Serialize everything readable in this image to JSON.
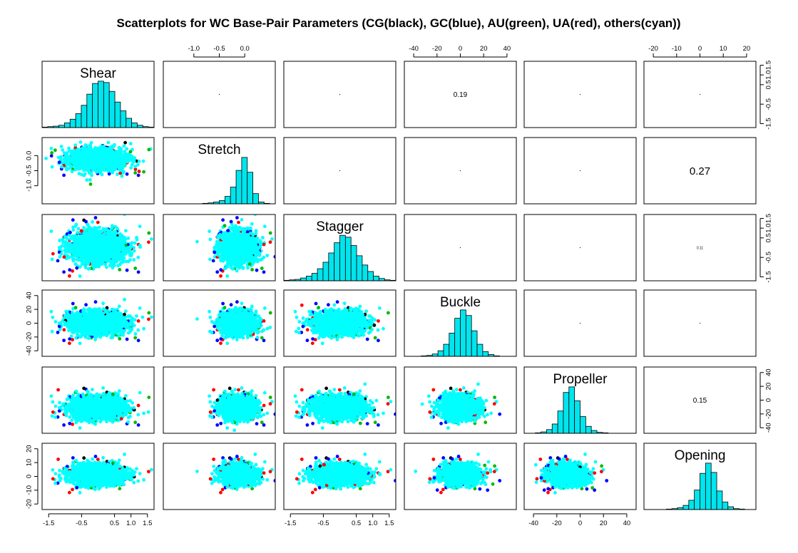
{
  "chart_data": {
    "type": "scatter-matrix",
    "title": "Scatterplots for WC Base-Pair Parameters (CG(black), GC(blue), AU(green), UA(red), others(cyan))",
    "variables": [
      {
        "name": "Shear",
        "range": [
          -1.7,
          1.7
        ],
        "ticks": [
          -1.5,
          -0.5,
          0.5,
          1.0,
          1.5
        ],
        "tick_labels": [
          "-1.5",
          "-0.5",
          "0.5",
          "1.0",
          "1.5"
        ]
      },
      {
        "name": "Stretch",
        "range": [
          -1.6,
          0.6
        ],
        "ticks": [
          -1.0,
          -0.5,
          0.0
        ],
        "tick_labels": [
          "-1.0",
          "-0.5",
          "0.0"
        ]
      },
      {
        "name": "Stagger",
        "range": [
          -1.7,
          1.7
        ],
        "ticks": [
          -1.5,
          -0.5,
          0.5,
          1.0,
          1.5
        ],
        "tick_labels": [
          "-1.5",
          "-0.5",
          "0.5",
          "1.0",
          "1.5"
        ]
      },
      {
        "name": "Buckle",
        "range": [
          -48,
          48
        ],
        "ticks": [
          -40,
          -20,
          0,
          20,
          40
        ],
        "tick_labels": [
          "-40",
          "-20",
          "0",
          "20",
          "40"
        ]
      },
      {
        "name": "Propeller",
        "range": [
          -48,
          48
        ],
        "ticks": [
          -40,
          -20,
          0,
          20,
          40
        ],
        "tick_labels": [
          "-40",
          "-20",
          "0",
          "20",
          "40"
        ]
      },
      {
        "name": "Opening",
        "range": [
          -24,
          24
        ],
        "ticks": [
          -20,
          -10,
          0,
          10,
          20
        ],
        "tick_labels": [
          "-20",
          "-10",
          "0",
          "10",
          "20"
        ]
      }
    ],
    "tick_side": {
      "bottom": [
        0,
        2,
        4
      ],
      "top": [
        1,
        3,
        5
      ],
      "left": [
        1,
        3,
        5
      ],
      "right": [
        0,
        2,
        4
      ]
    },
    "correlations": [
      {
        "row": 0,
        "col": 3,
        "label": "0.19",
        "size": 10
      },
      {
        "row": 1,
        "col": 5,
        "label": "0.27",
        "size": 15
      },
      {
        "row": 2,
        "col": 5,
        "label": "0.11",
        "size": 5
      },
      {
        "row": 4,
        "col": 5,
        "label": "0.15",
        "size": 10
      }
    ],
    "histograms": {
      "bins": 20,
      "fill": "#00e5ee",
      "Shear": {
        "range": [
          -1.7,
          1.7
        ],
        "counts": [
          1,
          2,
          3,
          5,
          10,
          18,
          30,
          48,
          72,
          95,
          100,
          97,
          78,
          55,
          36,
          20,
          10,
          5,
          2,
          1
        ]
      },
      "Stretch": {
        "range": [
          -1.6,
          0.6
        ],
        "counts": [
          0,
          0,
          0,
          0,
          0,
          0,
          0,
          1,
          2,
          4,
          7,
          16,
          36,
          72,
          100,
          68,
          22,
          4,
          1,
          0
        ]
      },
      "Stagger": {
        "range": [
          -1.7,
          1.7
        ],
        "counts": [
          1,
          2,
          3,
          6,
          10,
          16,
          26,
          40,
          60,
          82,
          98,
          94,
          76,
          54,
          34,
          20,
          10,
          5,
          2,
          1
        ]
      },
      "Buckle": {
        "range": [
          -48,
          48
        ],
        "counts": [
          0,
          0,
          0,
          1,
          2,
          5,
          12,
          26,
          50,
          82,
          100,
          88,
          55,
          26,
          10,
          4,
          1,
          0,
          0,
          0
        ]
      },
      "Propeller": {
        "range": [
          -48,
          48
        ],
        "counts": [
          0,
          0,
          1,
          3,
          8,
          20,
          48,
          88,
          100,
          70,
          36,
          15,
          6,
          2,
          1,
          0,
          0,
          0,
          0,
          0
        ]
      },
      "Opening": {
        "range": [
          -24,
          24
        ],
        "counts": [
          0,
          0,
          0,
          0,
          1,
          2,
          4,
          9,
          20,
          42,
          78,
          100,
          80,
          40,
          16,
          6,
          2,
          1,
          0,
          0
        ]
      }
    },
    "scatter": {
      "point_colors": {
        "CG": "#000000",
        "GC": "#0000ff",
        "AU": "#00bb00",
        "UA": "#ff0000",
        "others": "#00ffff"
      },
      "core": {
        "Shear": [
          0.0,
          0.42
        ],
        "Stretch": [
          -0.12,
          0.17
        ],
        "Stagger": [
          0.0,
          0.4
        ],
        "Buckle": [
          0,
          8
        ],
        "Propeller": [
          -11,
          8
        ],
        "Opening": [
          1,
          3.5
        ]
      },
      "points_per_panel": 1500
    }
  }
}
